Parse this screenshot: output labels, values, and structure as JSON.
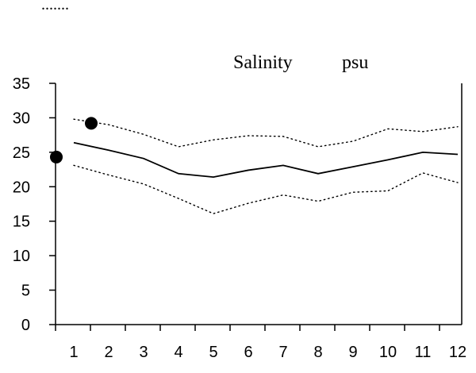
{
  "chart_data": {
    "type": "line",
    "title_parts": [
      "Salinity",
      "psu"
    ],
    "legend_fragment": ".......",
    "x": [
      1,
      2,
      3,
      4,
      5,
      6,
      7,
      8,
      9,
      10,
      11,
      12
    ],
    "x_tick_labels": [
      "1",
      "2",
      "3",
      "4",
      "5",
      "6",
      "7",
      "8",
      "9",
      "10",
      "11",
      "12"
    ],
    "ylim": [
      0,
      35
    ],
    "y_ticks": [
      0,
      5,
      10,
      15,
      20,
      25,
      30,
      35
    ],
    "y_tick_labels": [
      "0",
      "5",
      "10",
      "15",
      "20",
      "25",
      "30",
      "35"
    ],
    "grid": false,
    "series": [
      {
        "style": "solid",
        "values": [
          26.4,
          25.3,
          24.1,
          21.9,
          21.4,
          22.4,
          23.1,
          21.9,
          22.9,
          23.9,
          25.0,
          24.7
        ]
      },
      {
        "style": "dotted",
        "values": [
          29.8,
          29.0,
          27.6,
          25.8,
          26.8,
          27.4,
          27.3,
          25.8,
          26.6,
          28.4,
          28.0,
          28.7
        ]
      },
      {
        "style": "dotted",
        "values": [
          23.1,
          21.7,
          20.4,
          18.3,
          16.1,
          17.6,
          18.8,
          17.9,
          19.2,
          19.4,
          22.0,
          20.6
        ]
      }
    ],
    "points": [
      {
        "x": 0.5,
        "y": 24.3
      },
      {
        "x": 1.5,
        "y": 29.2
      }
    ],
    "colors": {
      "line": "#000000",
      "point": "#000000",
      "axis": "#000000"
    }
  }
}
